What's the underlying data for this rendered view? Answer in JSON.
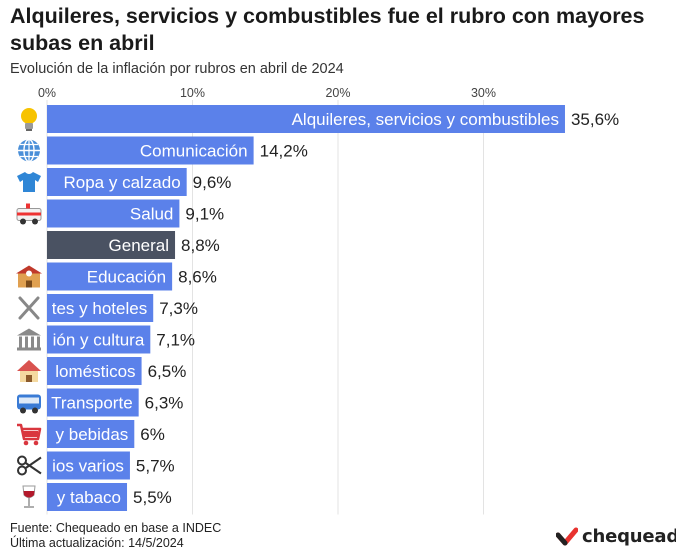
{
  "title": "Alquileres, servicios y combustibles fue el rubro con mayores subas en abril",
  "subtitle": "Evolución de la inflación por rubros en abril de 2024",
  "footer": {
    "source": "Fuente: Chequeado en base a INDEC",
    "updated": "Última actualización: 14/5/2024"
  },
  "brand": "chequeado",
  "colors": {
    "bar": "#5b81ea",
    "highlight": "#4a5262",
    "grid": "#e3e3e3",
    "brand_red": "#e8322f"
  },
  "chart_data": {
    "type": "bar",
    "orientation": "horizontal",
    "xlim": [
      0,
      36
    ],
    "ticks": [
      0,
      10,
      20,
      30
    ],
    "tick_labels": [
      "0%",
      "10%",
      "20%",
      "30%"
    ],
    "grid": true,
    "categories": [
      "Alquileres, servicios y combustibles",
      "Comunicación",
      "Ropa y calzado",
      "Salud",
      "General",
      "Educación",
      "Restaurantes y hoteles",
      "Recreación y cultura",
      "Equipamiento y mantenimiento del hogar / domésticos",
      "Transporte",
      "Alimentos y bebidas",
      "Bienes y servicios varios",
      "Bebidas alcohólicas y tabaco"
    ],
    "bar_labels": [
      "Alquileres, servicios y combustibles",
      "Comunicación",
      "Ropa y calzado",
      "Salud",
      "General",
      "Educación",
      "tes y hoteles",
      "ión y cultura",
      "lomésticos",
      "Transporte",
      "y bebidas",
      "ios varios",
      "y tabaco"
    ],
    "values": [
      35.6,
      14.2,
      9.6,
      9.1,
      8.8,
      8.6,
      7.3,
      7.1,
      6.5,
      6.3,
      6.0,
      5.7,
      5.5
    ],
    "value_labels": [
      "35,6%",
      "14,2%",
      "9,6%",
      "9,1%",
      "8,8%",
      "8,6%",
      "7,3%",
      "7,1%",
      "6,5%",
      "6,3%",
      "6%",
      "5,7%",
      "5,5%"
    ],
    "highlight": [
      "General"
    ],
    "icons": [
      "lightbulb-icon",
      "globe-icon",
      "tshirt-icon",
      "ambulance-icon",
      "",
      "school-icon",
      "cutlery-icon",
      "museum-icon",
      "house-icon",
      "bus-icon",
      "shopping-cart-icon",
      "scissors-icon",
      "wine-glass-icon"
    ]
  }
}
